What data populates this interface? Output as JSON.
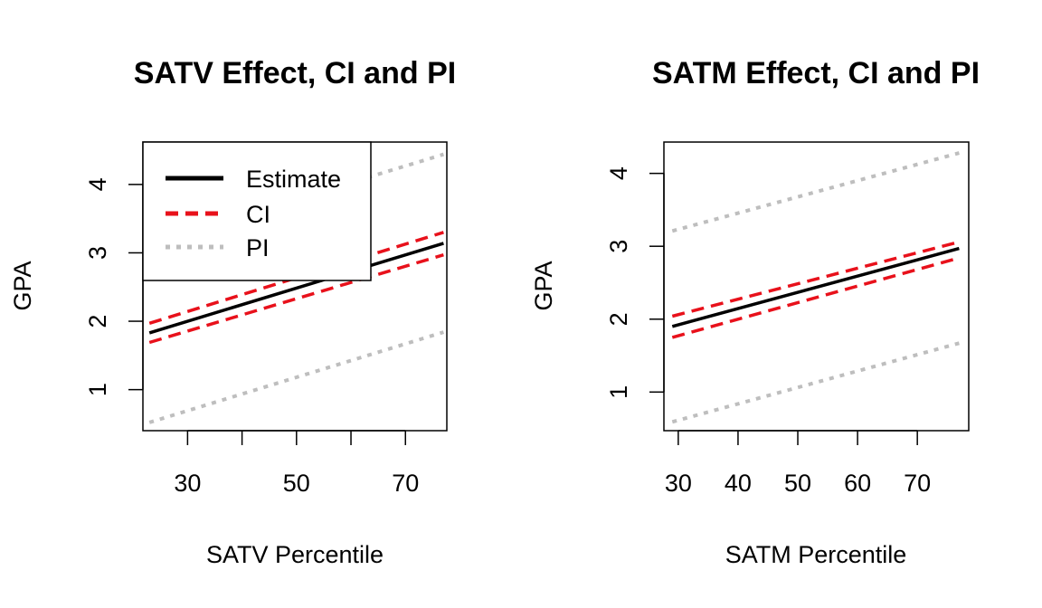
{
  "chart_data": [
    {
      "type": "line",
      "title": "SATV Effect, CI and PI",
      "xlabel": "SATV Percentile",
      "ylabel": "GPA",
      "xlim": [
        21.8,
        77.6
      ],
      "ylim": [
        0.4,
        4.62
      ],
      "xticks": [
        30,
        40,
        50,
        60,
        70
      ],
      "xtick_labels": [
        "30",
        "",
        "50",
        "",
        "70"
      ],
      "yticks": [
        1,
        2,
        3,
        4
      ],
      "legend": {
        "position": "top-left",
        "entries": [
          "Estimate",
          "CI",
          "PI"
        ]
      },
      "series": [
        {
          "name": "Estimate",
          "color": "#000000",
          "style": "solid",
          "x": [
            23,
            77
          ],
          "y": [
            1.83,
            3.14
          ]
        },
        {
          "name": "CI",
          "color": "#e8111b",
          "style": "dashed",
          "x": [
            23,
            77
          ],
          "y": [
            1.97,
            3.3
          ]
        },
        {
          "name": "CI",
          "color": "#e8111b",
          "style": "dashed",
          "x": [
            23,
            77
          ],
          "y": [
            1.69,
            2.97
          ]
        },
        {
          "name": "PI",
          "color": "#bebebe",
          "style": "dotted",
          "x": [
            23,
            77
          ],
          "y": [
            3.13,
            4.44
          ]
        },
        {
          "name": "PI",
          "color": "#bebebe",
          "style": "dotted",
          "x": [
            23,
            77
          ],
          "y": [
            0.52,
            1.84
          ]
        }
      ]
    },
    {
      "type": "line",
      "title": "SATM Effect, CI and PI",
      "xlabel": "SATM Percentile",
      "ylabel": "GPA",
      "xlim": [
        27.6,
        78.6
      ],
      "ylim": [
        0.47,
        4.43
      ],
      "xticks": [
        30,
        40,
        50,
        60,
        70
      ],
      "xtick_labels": [
        "30",
        "40",
        "50",
        "60",
        "70"
      ],
      "yticks": [
        1,
        2,
        3,
        4
      ],
      "series": [
        {
          "name": "Estimate",
          "color": "#000000",
          "style": "solid",
          "x": [
            29,
            77
          ],
          "y": [
            1.9,
            2.97
          ]
        },
        {
          "name": "CI",
          "color": "#e8111b",
          "style": "dashed",
          "x": [
            29,
            77
          ],
          "y": [
            2.04,
            3.06
          ]
        },
        {
          "name": "CI",
          "color": "#e8111b",
          "style": "dashed",
          "x": [
            29,
            77
          ],
          "y": [
            1.75,
            2.84
          ]
        },
        {
          "name": "PI",
          "color": "#bebebe",
          "style": "dotted",
          "x": [
            29,
            77
          ],
          "y": [
            3.21,
            4.28
          ]
        },
        {
          "name": "PI",
          "color": "#bebebe",
          "style": "dotted",
          "x": [
            29,
            77
          ],
          "y": [
            0.59,
            1.67
          ]
        }
      ]
    }
  ]
}
